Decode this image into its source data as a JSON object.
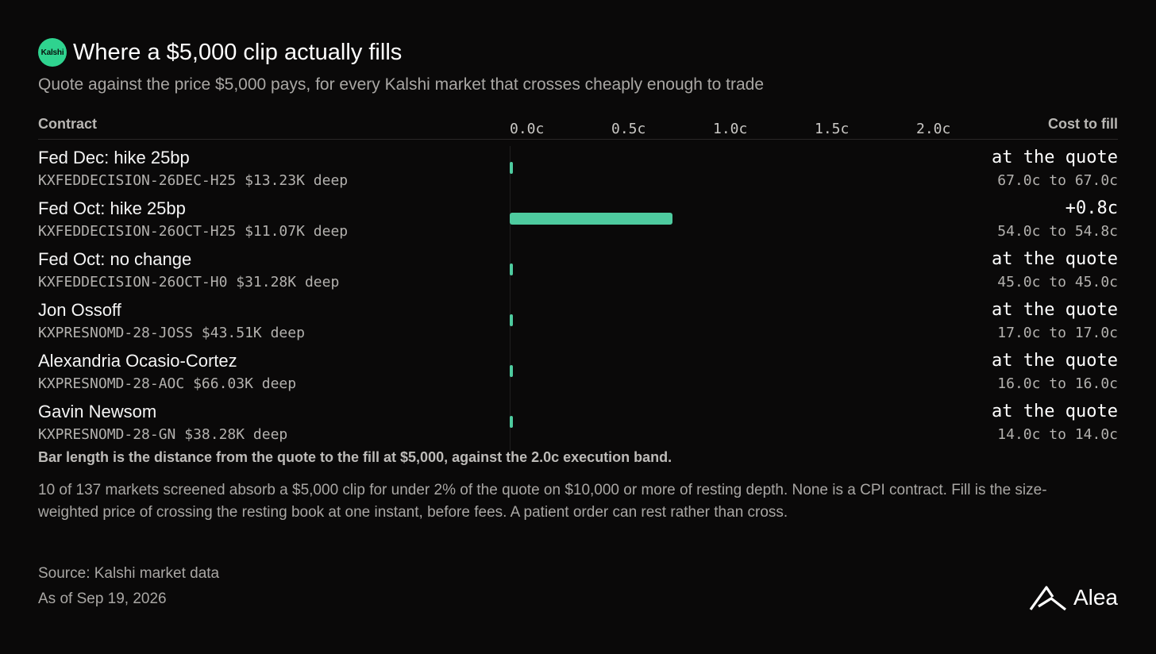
{
  "header": {
    "logo_text": "Kalshi",
    "title": "Where a $5,000 clip actually fills",
    "subtitle": "Quote against the price $5,000 pays, for every Kalshi market that crosses cheaply enough to trade"
  },
  "columns": {
    "contract": "Contract",
    "cost": "Cost to fill"
  },
  "chart_data": {
    "type": "bar",
    "orientation": "horizontal",
    "xlim": [
      0,
      2.0
    ],
    "x_ticks": [
      "0.0c",
      "0.5c",
      "1.0c",
      "1.5c",
      "2.0c"
    ],
    "x_tick_values": [
      0,
      0.5,
      1.0,
      1.5,
      2.0
    ],
    "categories": [
      "Fed Dec: hike 25bp",
      "Fed Oct: hike 25bp",
      "Fed Oct: no change",
      "Jon Ossoff",
      "Alexandria Ocasio-Cortez",
      "Gavin Newsom"
    ],
    "values": [
      0.0,
      0.8,
      0.0,
      0.0,
      0.0,
      0.0
    ],
    "rows": [
      {
        "name": "Fed Dec: hike 25bp",
        "meta": "KXFEDDECISION-26DEC-H25 $13.23K deep",
        "value": 0.0,
        "cost_label": "at the quote",
        "range": "67.0c to 67.0c"
      },
      {
        "name": "Fed Oct: hike 25bp",
        "meta": "KXFEDDECISION-26OCT-H25 $11.07K deep",
        "value": 0.8,
        "cost_label": "+0.8c",
        "range": "54.0c to 54.8c"
      },
      {
        "name": "Fed Oct: no change",
        "meta": "KXFEDDECISION-26OCT-H0 $31.28K deep",
        "value": 0.0,
        "cost_label": "at the quote",
        "range": "45.0c to 45.0c"
      },
      {
        "name": "Jon Ossoff",
        "meta": "KXPRESNOMD-28-JOSS $43.51K deep",
        "value": 0.0,
        "cost_label": "at the quote",
        "range": "17.0c to 17.0c"
      },
      {
        "name": "Alexandria Ocasio-Cortez",
        "meta": "KXPRESNOMD-28-AOC $66.03K deep",
        "value": 0.0,
        "cost_label": "at the quote",
        "range": "16.0c to 16.0c"
      },
      {
        "name": "Gavin Newsom",
        "meta": "KXPRESNOMD-28-GN $38.28K deep",
        "value": 0.0,
        "cost_label": "at the quote",
        "range": "14.0c to 14.0c"
      }
    ],
    "colors": {
      "bar": "#4ecb9f"
    }
  },
  "notes": {
    "bold": "Bar length is the distance from the quote to the fill at $5,000, against the 2.0c execution band.",
    "body": "10 of 137 markets screened absorb a $5,000 clip for under 2% of the quote on $10,000 or more of resting depth. None is a CPI contract. Fill is the size-weighted price of crossing the resting book at one instant, before fees. A patient order can rest rather than cross."
  },
  "footer": {
    "source": "Source: Kalshi market data",
    "as_of": "As of Sep 19, 2026",
    "brand": "Alea"
  }
}
